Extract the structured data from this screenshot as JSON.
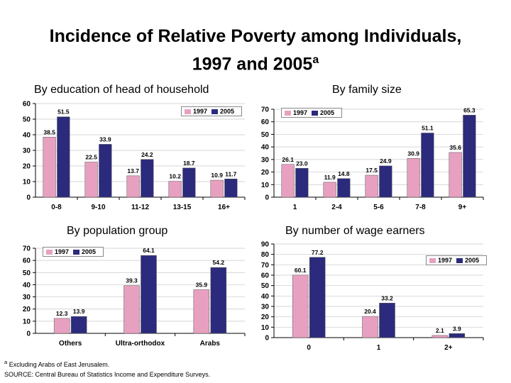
{
  "title": "Incidence of Relative Poverty among Individuals,",
  "title_line2": "1997 and 2005",
  "title_sup": "a",
  "colors": {
    "s1997": "#e8a0c0",
    "s2005": "#2c2a7c"
  },
  "footnote": "Excluding Arabs of East Jerusalem.",
  "footnote_mark": "a",
  "source": "SOURCE: Central Bureau of Statistics Income and Expenditure Surveys.",
  "chart_data": [
    {
      "type": "bar",
      "title": "By education of head of household",
      "categories": [
        "0-8",
        "9-10",
        "11-12",
        "13-15",
        "16+"
      ],
      "series": [
        {
          "name": "1997",
          "values": [
            38.5,
            22.5,
            13.7,
            10.2,
            10.9
          ]
        },
        {
          "name": "2005",
          "values": [
            51.5,
            33.9,
            24.2,
            18.7,
            11.7
          ]
        }
      ],
      "ylim": [
        0,
        60
      ],
      "yticks": [
        0,
        10,
        20,
        30,
        40,
        50,
        60
      ],
      "legend": "top-right"
    },
    {
      "type": "bar",
      "title": "By family size",
      "categories": [
        "1",
        "2-4",
        "5-6",
        "7-8",
        "9+"
      ],
      "series": [
        {
          "name": "1997",
          "values": [
            26.1,
            11.9,
            17.5,
            30.9,
            35.6
          ]
        },
        {
          "name": "2005",
          "values": [
            23.0,
            14.8,
            24.9,
            51.1,
            65.3
          ]
        }
      ],
      "ylim": [
        0,
        70
      ],
      "yticks": [
        0,
        10,
        20,
        30,
        40,
        50,
        60,
        70
      ],
      "legend": "top-left"
    },
    {
      "type": "bar",
      "title": "By population group",
      "categories": [
        "Others",
        "Ultra-orthodox",
        "Arabs"
      ],
      "series": [
        {
          "name": "1997",
          "values": [
            12.3,
            39.3,
            35.9
          ]
        },
        {
          "name": "2005",
          "values": [
            13.9,
            64.1,
            54.2
          ]
        }
      ],
      "ylim": [
        0,
        70
      ],
      "yticks": [
        0,
        10,
        20,
        30,
        40,
        50,
        60,
        70
      ],
      "legend": "top-left"
    },
    {
      "type": "bar",
      "title": "By number of wage earners",
      "categories": [
        "0",
        "1",
        "2+"
      ],
      "series": [
        {
          "name": "1997",
          "values": [
            60.1,
            20.4,
            2.1
          ]
        },
        {
          "name": "2005",
          "values": [
            77.2,
            33.2,
            3.9
          ]
        }
      ],
      "ylim": [
        0,
        90
      ],
      "yticks": [
        0,
        10,
        20,
        30,
        40,
        50,
        60,
        70,
        80,
        90
      ],
      "legend": "top-right"
    }
  ]
}
